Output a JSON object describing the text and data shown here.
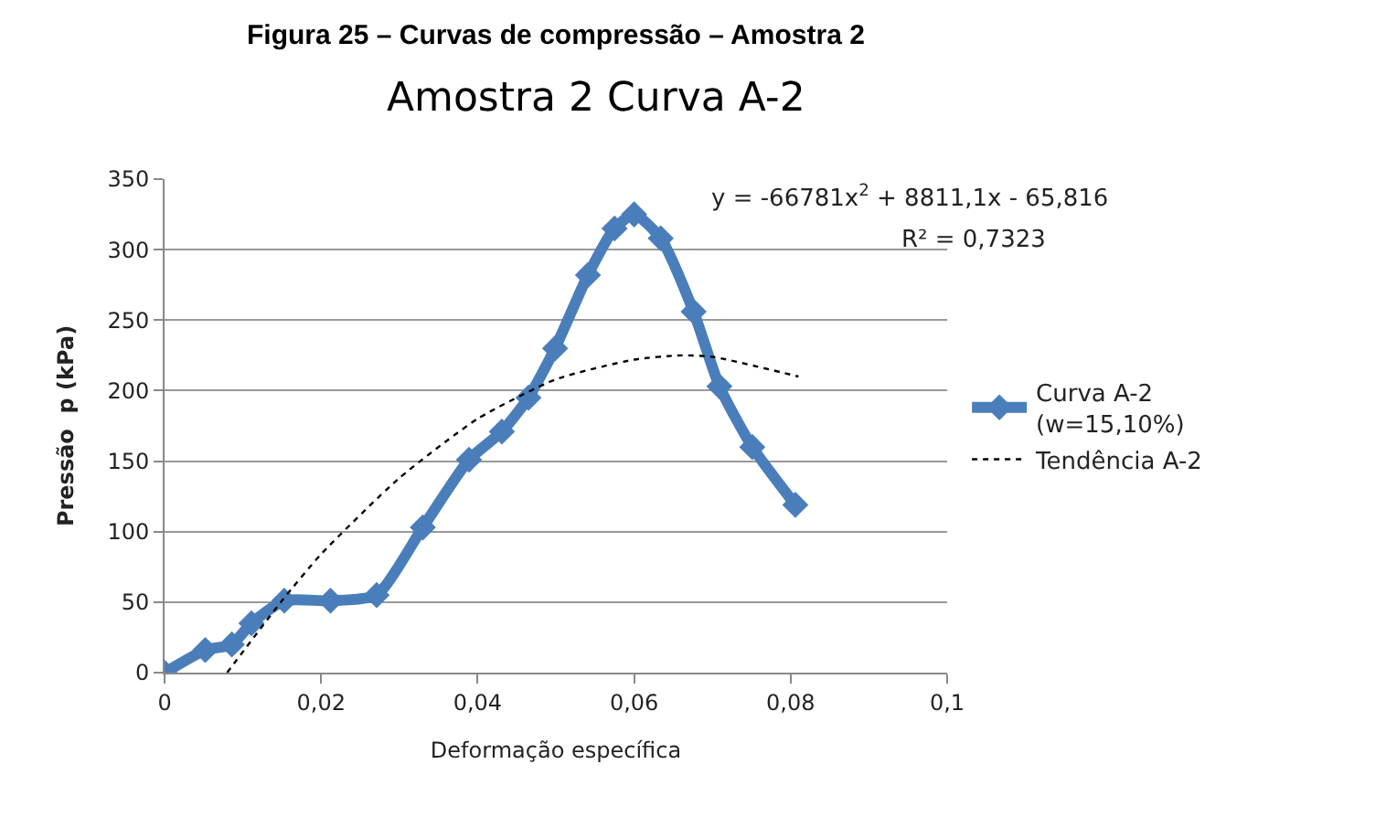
{
  "chart_data": {
    "type": "line",
    "title": "Amostra 2 Curva A-2",
    "subtitle": "Figura 25 – Curvas de compressão – Amostra 2",
    "xlabel": "Deformação específica",
    "ylabel": "Pressão  p (kPa)",
    "xlim": [
      0,
      0.1
    ],
    "xticks": [
      {
        "value": 0,
        "label": "0"
      },
      {
        "value": 0.02,
        "label": "0,02"
      },
      {
        "value": 0.04,
        "label": "0,04"
      },
      {
        "value": 0.06,
        "label": "0,06"
      },
      {
        "value": 0.08,
        "label": "0,08"
      },
      {
        "value": 0.1,
        "label": "0,1"
      }
    ],
    "ylim": [
      0,
      350
    ],
    "yticks": [
      0,
      50,
      100,
      150,
      200,
      250,
      300,
      350
    ],
    "grid": "y",
    "legend": "right",
    "series": [
      {
        "name": "Curva A-2\n(w=15,10%)",
        "color": "#4a7ebb",
        "marker": "diamond",
        "line_style": "solid",
        "x": [
          0,
          0.0052,
          0.0086,
          0.0111,
          0.0153,
          0.0212,
          0.0271,
          0.033,
          0.0389,
          0.0431,
          0.0465,
          0.0499,
          0.0541,
          0.0575,
          0.06,
          0.0634,
          0.0676,
          0.0709,
          0.0751,
          0.0806
        ],
        "values": [
          0,
          16,
          20,
          35,
          51,
          51,
          55,
          103,
          151,
          171,
          195,
          230,
          282,
          315,
          325,
          308,
          256,
          203,
          160,
          119
        ]
      },
      {
        "name": "Tendência A-2",
        "color": "#000000",
        "marker": "none",
        "line_style": "dotted",
        "x": [
          0.008,
          0.015,
          0.02,
          0.03,
          0.04,
          0.05,
          0.06,
          0.066,
          0.07,
          0.081
        ],
        "values": [
          0,
          51,
          84,
          138,
          180,
          208,
          222,
          225,
          224,
          210
        ]
      }
    ],
    "annotations": [
      "y = -66781x$^{2}$ + 8811,1x - 65,816",
      "R² = 0,7323"
    ]
  }
}
